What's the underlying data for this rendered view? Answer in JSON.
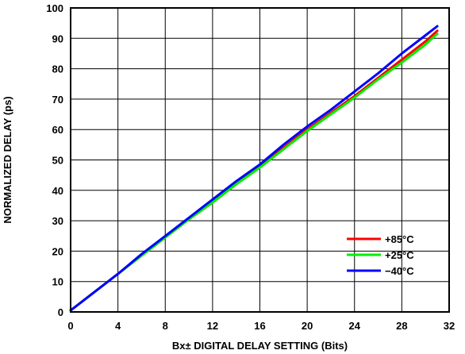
{
  "chart_data": {
    "type": "line",
    "title": "",
    "xlabel": "Bx± DIGITAL DELAY SETTING (Bits)",
    "ylabel": "NORMALIZED DELAY (ps)",
    "xlim": [
      0,
      32
    ],
    "ylim": [
      0,
      100
    ],
    "x_ticks": [
      0,
      4,
      8,
      12,
      16,
      20,
      24,
      28,
      32
    ],
    "y_ticks": [
      0,
      10,
      20,
      30,
      40,
      50,
      60,
      70,
      80,
      90,
      100
    ],
    "x_tick_labels": [
      "0",
      "4",
      "8",
      "12",
      "16",
      "20",
      "24",
      "28",
      "32"
    ],
    "y_tick_labels": [
      "0",
      "10",
      "20",
      "30",
      "40",
      "50",
      "60",
      "70",
      "80",
      "90",
      "100"
    ],
    "grid": true,
    "legend_position": "bottom-right",
    "series": [
      {
        "name": "+85°C",
        "color": "#ff0000",
        "x": [
          0,
          2,
          4,
          6,
          8,
          10,
          12,
          14,
          16,
          18,
          20,
          22,
          24,
          26,
          28,
          30,
          31
        ],
        "y": [
          0.5,
          6.5,
          12.5,
          18.5,
          24.5,
          30.5,
          36,
          42,
          48,
          54,
          60,
          65.5,
          71,
          77,
          83,
          89,
          92.5
        ]
      },
      {
        "name": "+25°C",
        "color": "#00ee00",
        "x": [
          0,
          2,
          4,
          6,
          8,
          10,
          12,
          14,
          16,
          18,
          20,
          22,
          24,
          26,
          28,
          30,
          31
        ],
        "y": [
          0.5,
          6.5,
          12.5,
          18.5,
          24.5,
          30.5,
          36,
          42,
          47.5,
          53.5,
          59.5,
          65,
          70.5,
          76.5,
          82,
          88,
          91.5
        ]
      },
      {
        "name": "−40°C",
        "color": "#0000ff",
        "x": [
          0,
          2,
          4,
          6,
          8,
          10,
          12,
          14,
          16,
          18,
          20,
          22,
          24,
          26,
          28,
          30,
          31
        ],
        "y": [
          0.5,
          6.5,
          12.5,
          19,
          25,
          31,
          37,
          43,
          48.5,
          55,
          61,
          66.5,
          72.5,
          78.5,
          85,
          91,
          94
        ]
      }
    ]
  }
}
